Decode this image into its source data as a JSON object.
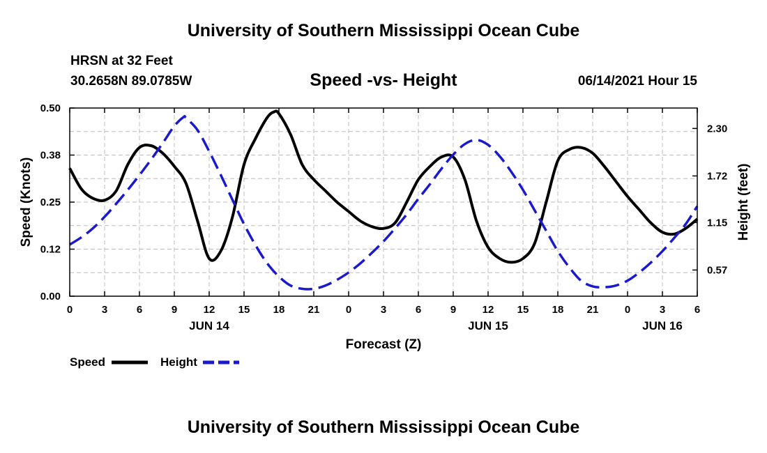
{
  "header": {
    "title": "University of Southern Mississippi Ocean Cube",
    "station": "HRSN at 32 Feet",
    "coords": "30.2658N  89.0785W",
    "subtitle": "Speed -vs- Height",
    "datestamp": "06/14/2021 Hour 15"
  },
  "footer": {
    "title": "University of Southern Mississippi Ocean Cube"
  },
  "colors": {
    "speed": "#000000",
    "height": "#1a1acc",
    "grid": "#bbbbbb"
  },
  "chart_data": {
    "type": "line",
    "xlabel": "Forecast (Z)",
    "ylabel": "Speed (Knots)",
    "y2label": "Height (feet)",
    "xlim": [
      0,
      54
    ],
    "ylim": [
      0,
      0.5
    ],
    "y2lim": [
      0.25,
      2.55
    ],
    "x_ticks": [
      0,
      3,
      6,
      9,
      12,
      15,
      18,
      21,
      24,
      27,
      30,
      33,
      36,
      39,
      42,
      45,
      48,
      51,
      54
    ],
    "x_tick_labels": [
      "0",
      "3",
      "6",
      "9",
      "12",
      "15",
      "18",
      "21",
      "0",
      "3",
      "6",
      "9",
      "12",
      "15",
      "18",
      "21",
      "0",
      "3",
      "6"
    ],
    "day_labels": [
      {
        "x": 12,
        "label": "JUN 14"
      },
      {
        "x": 36,
        "label": "JUN 15"
      },
      {
        "x": 51,
        "label": "JUN 16"
      }
    ],
    "y_ticks": [
      0,
      0.125,
      0.25,
      0.375,
      0.5
    ],
    "y_tick_labels": [
      "0.00",
      "0.12",
      "0.25",
      "0.38",
      "0.50"
    ],
    "y2_ticks": [
      0.57,
      1.15,
      1.72,
      2.3
    ],
    "y2_tick_labels": [
      "0.57",
      "1.15",
      "1.72",
      "2.30"
    ],
    "grid": true,
    "legend": [
      {
        "name": "Speed",
        "style": "solid"
      },
      {
        "name": "Height",
        "style": "dashed"
      }
    ],
    "series": [
      {
        "name": "Speed",
        "axis": "left",
        "x": [
          0,
          1,
          2,
          3,
          4,
          5,
          6,
          7,
          8,
          9,
          10,
          11,
          12,
          13,
          14,
          15,
          16,
          17,
          17.6,
          18,
          19,
          20,
          21,
          22,
          23,
          24,
          25,
          26,
          27,
          28,
          29,
          30,
          31,
          32,
          33,
          34,
          35,
          36,
          37,
          38,
          39,
          40,
          41,
          42,
          43,
          44,
          45,
          46,
          47,
          48,
          49,
          50,
          51,
          52,
          53,
          54
        ],
        "values": [
          0.34,
          0.285,
          0.26,
          0.255,
          0.28,
          0.35,
          0.395,
          0.4,
          0.38,
          0.345,
          0.3,
          0.2,
          0.1,
          0.12,
          0.21,
          0.35,
          0.42,
          0.475,
          0.49,
          0.485,
          0.43,
          0.35,
          0.31,
          0.28,
          0.25,
          0.225,
          0.2,
          0.185,
          0.18,
          0.195,
          0.25,
          0.31,
          0.345,
          0.37,
          0.37,
          0.31,
          0.2,
          0.13,
          0.1,
          0.09,
          0.1,
          0.14,
          0.25,
          0.36,
          0.39,
          0.395,
          0.38,
          0.345,
          0.305,
          0.265,
          0.23,
          0.195,
          0.17,
          0.165,
          0.18,
          0.205
        ]
      },
      {
        "name": "Height",
        "axis": "right",
        "x": [
          0,
          1,
          2,
          3,
          4,
          5,
          6,
          7,
          8,
          9,
          9.8,
          10,
          11,
          12,
          13,
          14,
          15,
          16,
          17,
          18,
          19,
          20,
          21,
          22,
          23,
          24,
          25,
          26,
          27,
          28,
          29,
          30,
          31,
          32,
          33,
          34,
          35,
          36,
          37,
          38,
          39,
          40,
          41,
          42,
          43,
          44,
          45,
          46,
          47,
          48,
          49,
          50,
          51,
          52,
          53,
          54
        ],
        "values": [
          0.88,
          0.97,
          1.08,
          1.22,
          1.38,
          1.55,
          1.73,
          1.92,
          2.12,
          2.33,
          2.44,
          2.43,
          2.28,
          2.02,
          1.73,
          1.43,
          1.13,
          0.87,
          0.65,
          0.49,
          0.38,
          0.34,
          0.34,
          0.38,
          0.45,
          0.54,
          0.65,
          0.78,
          0.92,
          1.08,
          1.25,
          1.44,
          1.62,
          1.81,
          1.98,
          2.11,
          2.16,
          2.1,
          1.96,
          1.77,
          1.55,
          1.3,
          1.05,
          0.8,
          0.6,
          0.44,
          0.37,
          0.36,
          0.38,
          0.44,
          0.54,
          0.66,
          0.8,
          0.96,
          1.13,
          1.35
        ]
      }
    ]
  }
}
